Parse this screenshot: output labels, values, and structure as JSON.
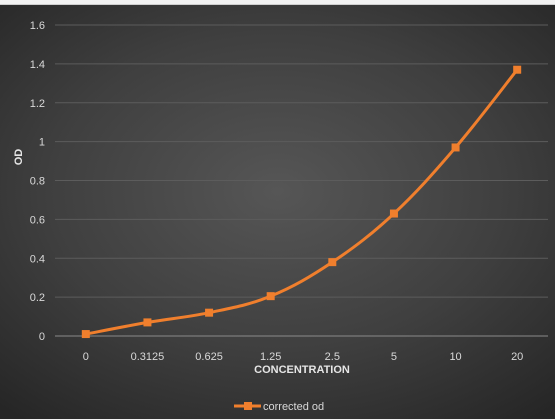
{
  "chart_data": {
    "type": "line",
    "title": "",
    "xlabel": "CONCENTRATION",
    "ylabel": "OD",
    "categories": [
      "0",
      "0.3125",
      "0.625",
      "1.25",
      "2.5",
      "5",
      "10",
      "20"
    ],
    "series": [
      {
        "name": "corrected od",
        "color": "#f07f2d",
        "marker": "square",
        "values": [
          0.01,
          0.07,
          0.12,
          0.205,
          0.38,
          0.63,
          0.97,
          1.37
        ]
      }
    ],
    "yticks": [
      "0",
      "0.2",
      "0.4",
      "0.6",
      "0.8",
      "1",
      "1.2",
      "1.4",
      "1.6"
    ],
    "ylim": [
      0,
      1.6
    ],
    "grid": true,
    "legend_position": "bottom"
  }
}
